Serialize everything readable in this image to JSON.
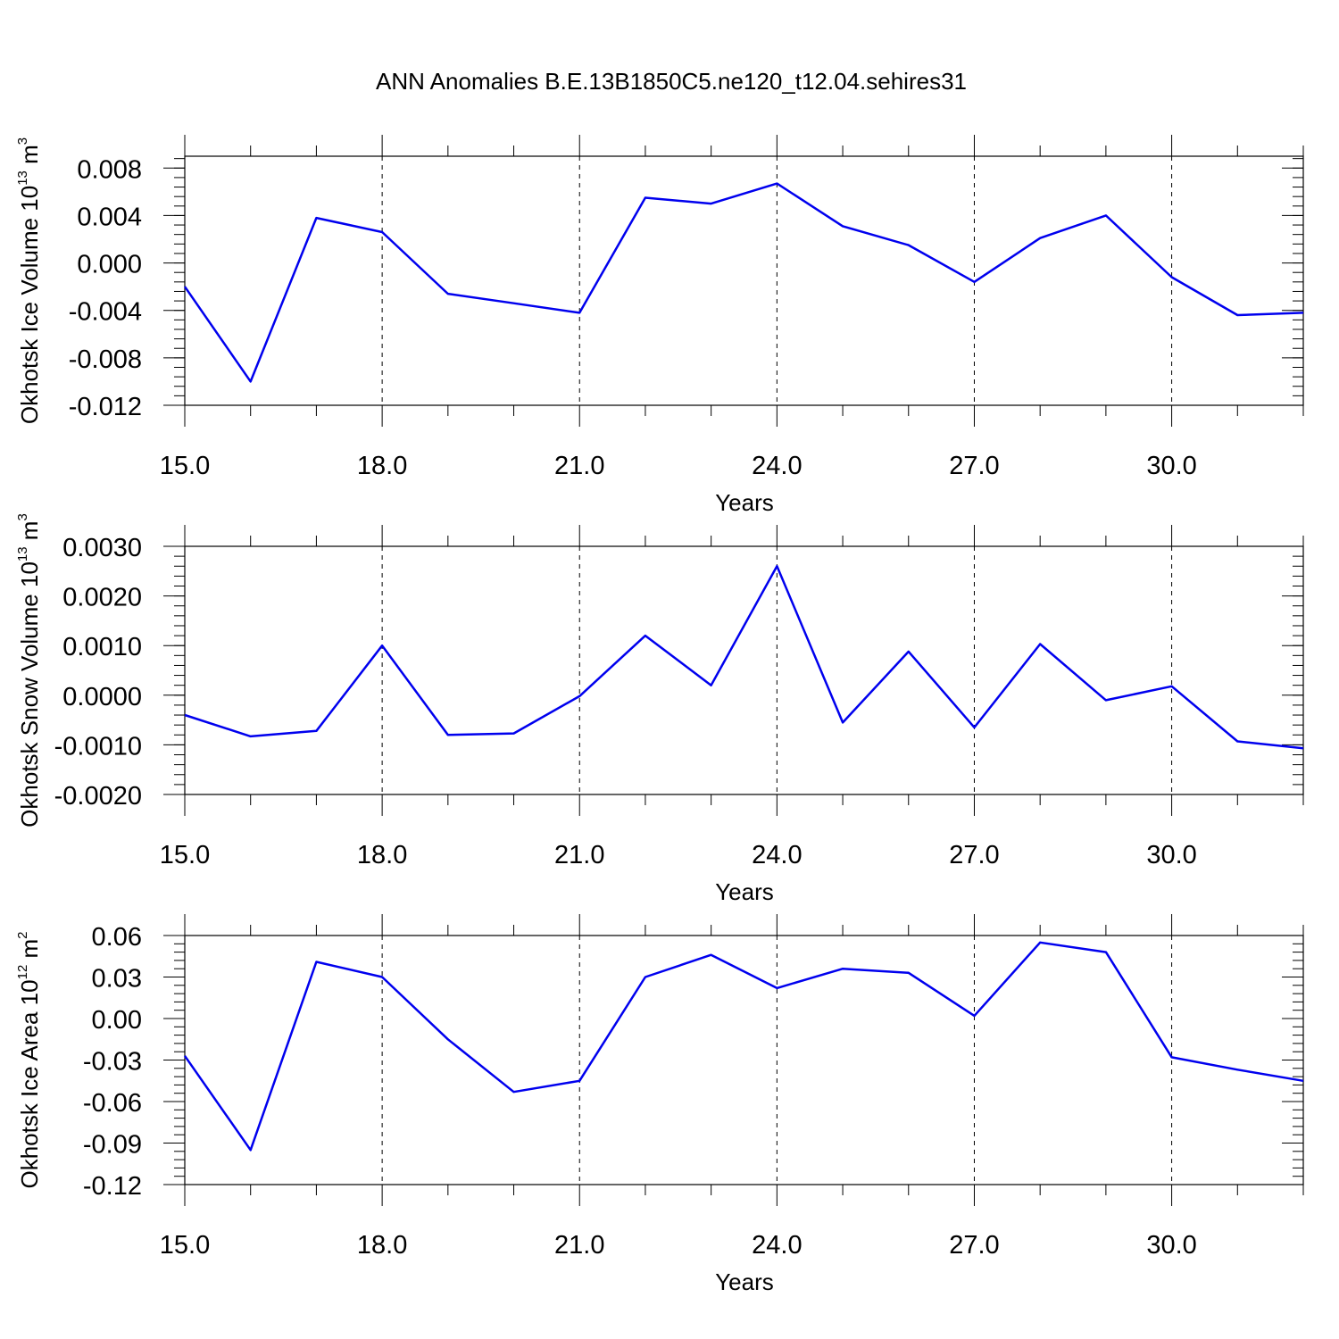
{
  "figure_title": "ANN Anomalies B.E.13B1850C5.ne120_t12.04.sehires31",
  "chart_data": [
    {
      "type": "line",
      "xlabel": "Years",
      "ylabel": {
        "base": "Okhotsk Ice Volume 10",
        "exp": "13",
        "unit": " m",
        "unit_exp": "3"
      },
      "xlim": [
        15,
        32
      ],
      "ylim": [
        -0.012,
        0.009
      ],
      "yticks": [
        -0.012,
        -0.008,
        -0.004,
        0.0,
        0.004,
        0.008
      ],
      "ytick_labels": [
        "-0.012",
        "-0.008",
        "-0.004",
        "0.000",
        "0.004",
        "0.008"
      ],
      "ygrid": false,
      "xticks": [
        15,
        18,
        21,
        24,
        27,
        30
      ],
      "xtick_labels": [
        "15.0",
        "18.0",
        "21.0",
        "24.0",
        "27.0",
        "30.0"
      ],
      "grid": "vertical dashed at major x ticks",
      "color": "#0000ee",
      "series": [
        {
          "x": [
            15,
            16,
            17,
            18,
            19,
            20,
            21,
            22,
            23,
            24,
            25,
            26,
            27,
            28,
            29,
            30,
            31,
            32
          ],
          "values": [
            -0.002,
            -0.01,
            0.0038,
            0.0026,
            -0.0026,
            -0.0034,
            -0.0042,
            0.0055,
            0.005,
            0.0067,
            0.0031,
            0.0015,
            -0.0016,
            0.0021,
            0.004,
            -0.0012,
            -0.0044,
            -0.0042
          ]
        }
      ]
    },
    {
      "type": "line",
      "xlabel": "Years",
      "ylabel": {
        "base": "Okhotsk Snow Volume 10",
        "exp": "13",
        "unit": " m",
        "unit_exp": "3"
      },
      "xlim": [
        15,
        32
      ],
      "ylim": [
        -0.002,
        0.003
      ],
      "yticks": [
        -0.002,
        -0.001,
        0.0,
        0.001,
        0.002,
        0.003
      ],
      "ytick_labels": [
        "-0.0020",
        "-0.0010",
        "0.0000",
        "0.0010",
        "0.0020",
        "0.0030"
      ],
      "xticks": [
        15,
        18,
        21,
        24,
        27,
        30
      ],
      "xtick_labels": [
        "15.0",
        "18.0",
        "21.0",
        "24.0",
        "27.0",
        "30.0"
      ],
      "grid": "vertical dashed at major x ticks",
      "color": "#0000ee",
      "series": [
        {
          "x": [
            15,
            16,
            17,
            18,
            19,
            20,
            21,
            22,
            23,
            24,
            25,
            26,
            27,
            28,
            29,
            30,
            31,
            32
          ],
          "values": [
            -0.0004,
            -0.00083,
            -0.00072,
            0.001,
            -0.0008,
            -0.00077,
            -2e-05,
            0.0012,
            0.0002,
            0.0026,
            -0.00055,
            0.00088,
            -0.00065,
            0.00103,
            -0.0001,
            0.00018,
            -0.00093,
            -0.00107
          ]
        }
      ]
    },
    {
      "type": "line",
      "xlabel": "Years",
      "ylabel": {
        "base": "Okhotsk Ice Area 10",
        "exp": "12",
        "unit": " m",
        "unit_exp": "2"
      },
      "xlim": [
        15,
        32
      ],
      "ylim": [
        -0.12,
        0.06
      ],
      "yticks": [
        -0.12,
        -0.09,
        -0.06,
        -0.03,
        0.0,
        0.03,
        0.06
      ],
      "ytick_labels": [
        "-0.12",
        "-0.09",
        "-0.06",
        "-0.03",
        "0.00",
        "0.03",
        "0.06"
      ],
      "xticks": [
        15,
        18,
        21,
        24,
        27,
        30
      ],
      "xtick_labels": [
        "15.0",
        "18.0",
        "21.0",
        "24.0",
        "27.0",
        "30.0"
      ],
      "grid": "vertical dashed at major x ticks",
      "color": "#0000ee",
      "series": [
        {
          "x": [
            15,
            16,
            17,
            18,
            19,
            20,
            21,
            22,
            23,
            24,
            25,
            26,
            27,
            28,
            29,
            30,
            31,
            32
          ],
          "values": [
            -0.027,
            -0.095,
            0.041,
            0.03,
            -0.015,
            -0.053,
            -0.045,
            0.03,
            0.046,
            0.022,
            0.036,
            0.033,
            0.002,
            0.055,
            0.048,
            -0.028,
            -0.037,
            -0.045
          ]
        }
      ]
    }
  ]
}
